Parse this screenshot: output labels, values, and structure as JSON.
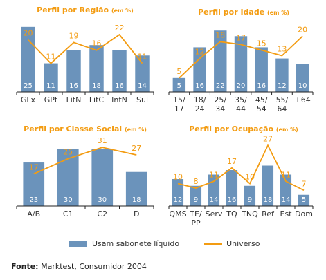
{
  "chart_data": [
    {
      "type": "bar",
      "title": "Perfil por Região",
      "title_unit": "(em %)",
      "categories": [
        "GLx",
        "GPt",
        "LitN",
        "LitC",
        "IntN",
        "Sul"
      ],
      "series": [
        {
          "name": "Usam sabonete líquido",
          "type": "bar",
          "values": [
            25,
            11,
            16,
            18,
            16,
            14
          ]
        },
        {
          "name": "Universo",
          "type": "line",
          "values": [
            20,
            11,
            19,
            16,
            22,
            11
          ]
        }
      ],
      "ylim": [
        0,
        30
      ]
    },
    {
      "type": "bar",
      "title": "Perfil por Idade",
      "title_unit": "(em %)",
      "categories": [
        "15/\n17",
        "18/\n24",
        "25/\n34",
        "35/\n44",
        "45/\n54",
        "55/\n64",
        "+64"
      ],
      "series": [
        {
          "name": "Usam sabonete líquido",
          "type": "bar",
          "values": [
            5,
            16,
            22,
            20,
            16,
            12,
            10
          ]
        },
        {
          "name": "Universo",
          "type": "line",
          "values": [
            5,
            12,
            18,
            17,
            15,
            13,
            20
          ]
        }
      ],
      "ylim": [
        0,
        28
      ]
    },
    {
      "type": "bar",
      "title": "Perfil por Classe Social",
      "title_unit": "(em %)",
      "categories": [
        "A/B",
        "C1",
        "C2",
        "D"
      ],
      "series": [
        {
          "name": "Usam sabonete líquido",
          "type": "bar",
          "values": [
            23,
            30,
            30,
            18
          ]
        },
        {
          "name": "Universo",
          "type": "line",
          "values": [
            17,
            25,
            31,
            27
          ]
        }
      ],
      "ylim": [
        0,
        38
      ]
    },
    {
      "type": "bar",
      "title": "Perfil por Ocupação",
      "title_unit": "(em %)",
      "categories": [
        "QMS",
        "TE/\nPP",
        "Serv",
        "TQ",
        "TNQ",
        "Ref",
        "Est",
        "Dom"
      ],
      "series": [
        {
          "name": "Usam sabonete líquido",
          "type": "bar",
          "values": [
            12,
            9,
            14,
            16,
            9,
            18,
            14,
            5
          ]
        },
        {
          "name": "Universo",
          "type": "line",
          "values": [
            10,
            8,
            11,
            17,
            10,
            27,
            11,
            7
          ]
        }
      ],
      "ylim": [
        0,
        32
      ]
    }
  ],
  "legend": {
    "bar_label": "Usam sabonete líquido",
    "line_label": "Universo"
  },
  "source": {
    "label": "Fonte:",
    "text": " Marktest, Consumidor 2004"
  },
  "colors": {
    "bar": "#6b93bb",
    "line": "#f39c12",
    "title": "#f39c12",
    "axis": "#222222"
  }
}
